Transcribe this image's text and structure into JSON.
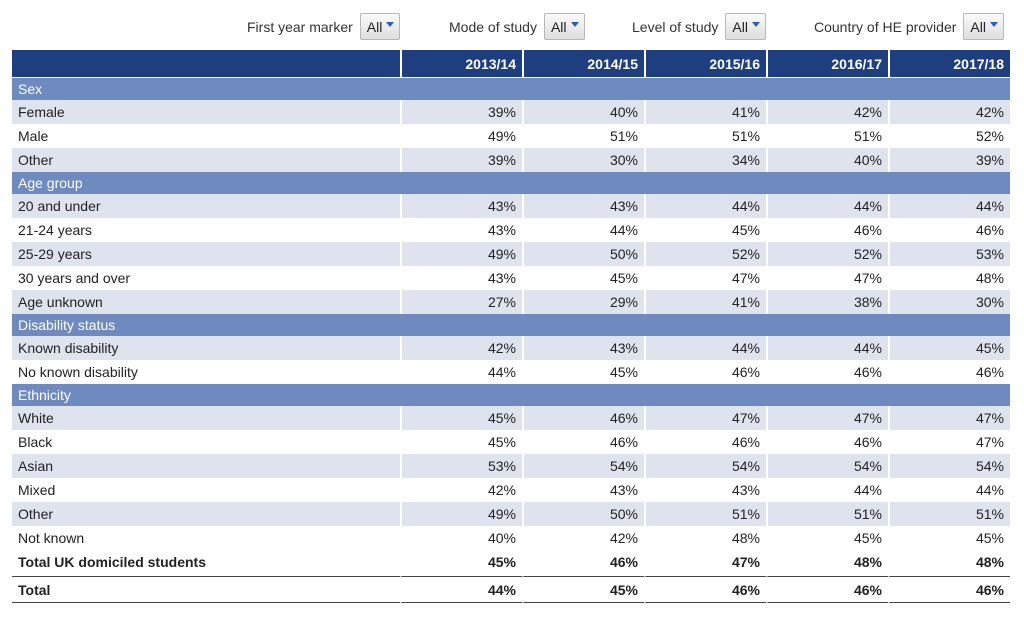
{
  "filters": [
    {
      "label": "First year marker",
      "value": "All"
    },
    {
      "label": "Mode of study",
      "value": "All"
    },
    {
      "label": "Level of study",
      "value": "All"
    },
    {
      "label": "Country of HE provider",
      "value": "All"
    }
  ],
  "table": {
    "years": [
      "2013/14",
      "2014/15",
      "2015/16",
      "2016/17",
      "2017/18"
    ],
    "groups": [
      {
        "title": "Sex",
        "rows": [
          {
            "label": "Female",
            "values": [
              "39%",
              "40%",
              "41%",
              "42%",
              "42%"
            ]
          },
          {
            "label": "Male",
            "values": [
              "49%",
              "51%",
              "51%",
              "51%",
              "52%"
            ]
          },
          {
            "label": "Other",
            "values": [
              "39%",
              "30%",
              "34%",
              "40%",
              "39%"
            ]
          }
        ]
      },
      {
        "title": "Age group",
        "rows": [
          {
            "label": "20 and under",
            "values": [
              "43%",
              "43%",
              "44%",
              "44%",
              "44%"
            ]
          },
          {
            "label": "21-24 years",
            "values": [
              "43%",
              "44%",
              "45%",
              "46%",
              "46%"
            ]
          },
          {
            "label": "25-29 years",
            "values": [
              "49%",
              "50%",
              "52%",
              "52%",
              "53%"
            ]
          },
          {
            "label": "30 years and over",
            "values": [
              "43%",
              "45%",
              "47%",
              "47%",
              "48%"
            ]
          },
          {
            "label": "Age unknown",
            "values": [
              "27%",
              "29%",
              "41%",
              "38%",
              "30%"
            ]
          }
        ]
      },
      {
        "title": "Disability status",
        "rows": [
          {
            "label": "Known disability",
            "values": [
              "42%",
              "43%",
              "44%",
              "44%",
              "45%"
            ]
          },
          {
            "label": "No known disability",
            "values": [
              "44%",
              "45%",
              "46%",
              "46%",
              "46%"
            ]
          }
        ]
      },
      {
        "title": "Ethnicity",
        "rows": [
          {
            "label": "White",
            "values": [
              "45%",
              "46%",
              "47%",
              "47%",
              "47%"
            ]
          },
          {
            "label": "Black",
            "values": [
              "45%",
              "46%",
              "46%",
              "46%",
              "47%"
            ]
          },
          {
            "label": "Asian",
            "values": [
              "53%",
              "54%",
              "54%",
              "54%",
              "54%"
            ]
          },
          {
            "label": "Mixed",
            "values": [
              "42%",
              "43%",
              "43%",
              "44%",
              "44%"
            ]
          },
          {
            "label": "Other",
            "values": [
              "49%",
              "50%",
              "51%",
              "51%",
              "51%"
            ]
          },
          {
            "label": "Not known",
            "values": [
              "40%",
              "42%",
              "48%",
              "45%",
              "45%"
            ]
          }
        ]
      }
    ],
    "totals": [
      {
        "label": "Total UK domiciled students",
        "values": [
          "45%",
          "46%",
          "47%",
          "48%",
          "48%"
        ]
      },
      {
        "label": "Total",
        "values": [
          "44%",
          "45%",
          "46%",
          "46%",
          "46%"
        ]
      }
    ]
  }
}
